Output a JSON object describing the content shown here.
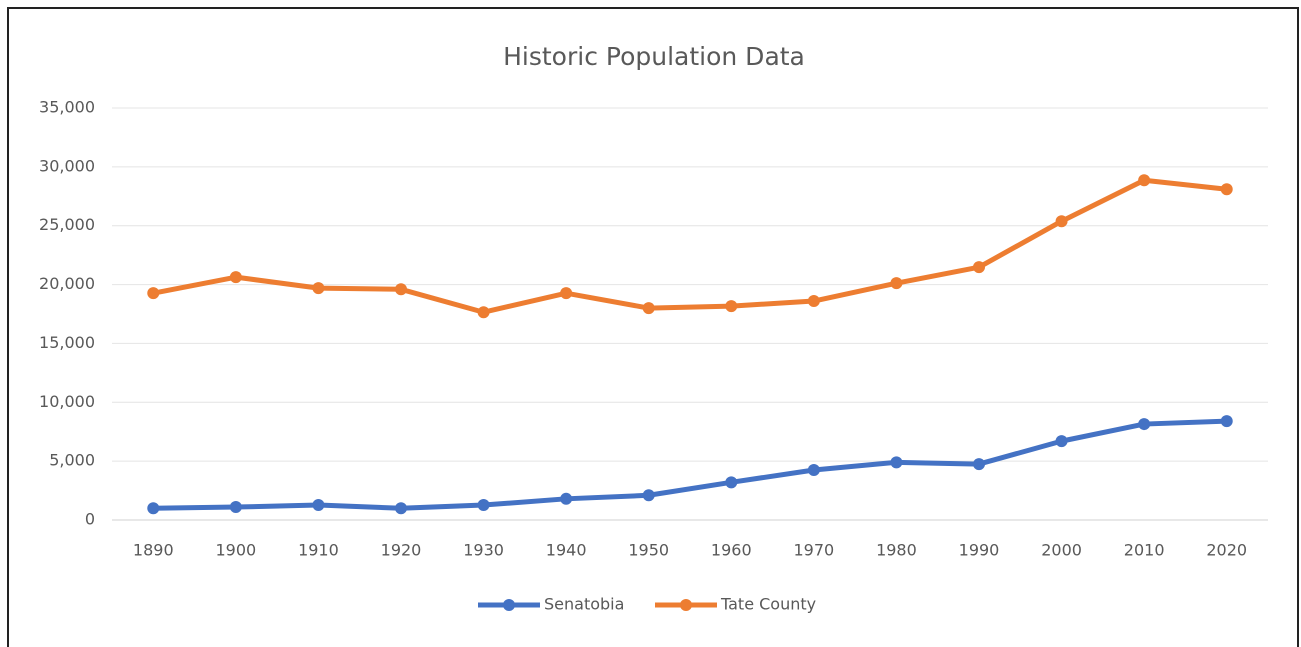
{
  "chart_data": {
    "type": "line",
    "title": "Historic Population Data",
    "categories": [
      "1890",
      "1900",
      "1910",
      "1920",
      "1930",
      "1940",
      "1950",
      "1960",
      "1970",
      "1980",
      "1990",
      "2000",
      "2010",
      "2020"
    ],
    "series": [
      {
        "name": "Senatobia",
        "color": "#4472c4",
        "values": [
          1000,
          1100,
          1270,
          1000,
          1270,
          1800,
          2100,
          3200,
          4250,
          4900,
          4750,
          6700,
          8150,
          8400
        ]
      },
      {
        "name": "Tate County",
        "color": "#ed7d31",
        "values": [
          19270,
          20630,
          19700,
          19600,
          17650,
          19270,
          18000,
          18170,
          18600,
          20120,
          21480,
          25380,
          28860,
          28100
        ]
      }
    ],
    "ylim": [
      0,
      35000
    ],
    "yticks": [
      0,
      {
        "value": 5000,
        "label": "5,000"
      },
      {
        "value": 10000,
        "label": "10,000"
      },
      {
        "value": 15000,
        "label": "15,000"
      },
      {
        "value": 20000,
        "label": "20,000"
      },
      {
        "value": 25000,
        "label": "25,000"
      },
      {
        "value": 30000,
        "label": "30,000"
      },
      {
        "value": 35000,
        "label": "35,000"
      }
    ],
    "grid": true,
    "legend": "bottom"
  }
}
